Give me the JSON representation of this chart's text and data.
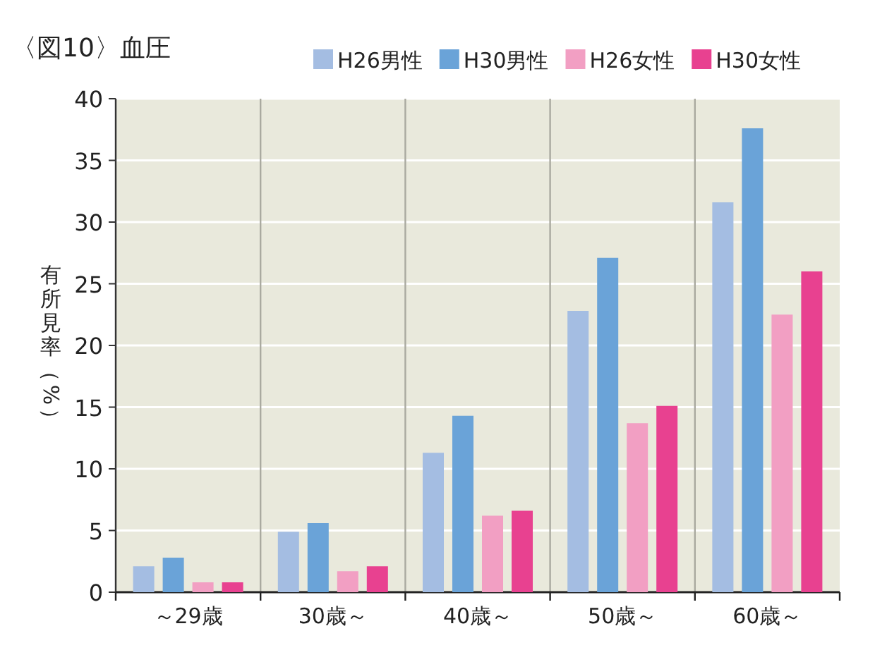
{
  "chart_data": {
    "type": "bar",
    "title": "〈図10〉血圧",
    "ylabel": "有所見率（%）",
    "categories": [
      "～29歳",
      "30歳～",
      "40歳～",
      "50歳～",
      "60歳～"
    ],
    "series": [
      {
        "name": "H26男性",
        "color": "#a4bde2",
        "values": [
          2.1,
          4.9,
          11.3,
          22.8,
          31.6
        ]
      },
      {
        "name": "H30男性",
        "color": "#6aa3d8",
        "values": [
          2.8,
          5.6,
          14.3,
          27.1,
          37.6
        ]
      },
      {
        "name": "H26女性",
        "color": "#f29fc3",
        "values": [
          0.8,
          1.7,
          6.2,
          13.7,
          22.5
        ]
      },
      {
        "name": "H30女性",
        "color": "#e84190",
        "values": [
          0.8,
          2.1,
          6.6,
          15.1,
          26.0
        ]
      }
    ],
    "ylim": [
      0,
      40
    ],
    "yticks": [
      0,
      5,
      10,
      15,
      20,
      25,
      30,
      35,
      40
    ],
    "grid": "y",
    "legend": "top right"
  }
}
